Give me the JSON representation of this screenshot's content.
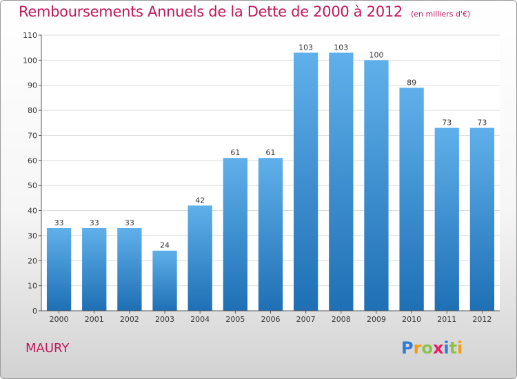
{
  "chart_data": {
    "type": "bar",
    "title": "Remboursements Annuels de la Dette de 2000 à 2012",
    "unit": "(en milliers d'€)",
    "categories": [
      "2000",
      "2001",
      "2002",
      "2003",
      "2004",
      "2005",
      "2006",
      "2007",
      "2008",
      "2009",
      "2010",
      "2011",
      "2012"
    ],
    "values": [
      33,
      33,
      33,
      24,
      42,
      61,
      61,
      103,
      103,
      100,
      89,
      73,
      73
    ],
    "ylim": [
      0,
      110
    ],
    "yticks": [
      0,
      10,
      20,
      30,
      40,
      50,
      60,
      70,
      80,
      90,
      100,
      110
    ],
    "grid": true,
    "bar_color": "#3d8fd6"
  },
  "footer": {
    "commune": "MAURY",
    "logo": "Proxiti"
  }
}
